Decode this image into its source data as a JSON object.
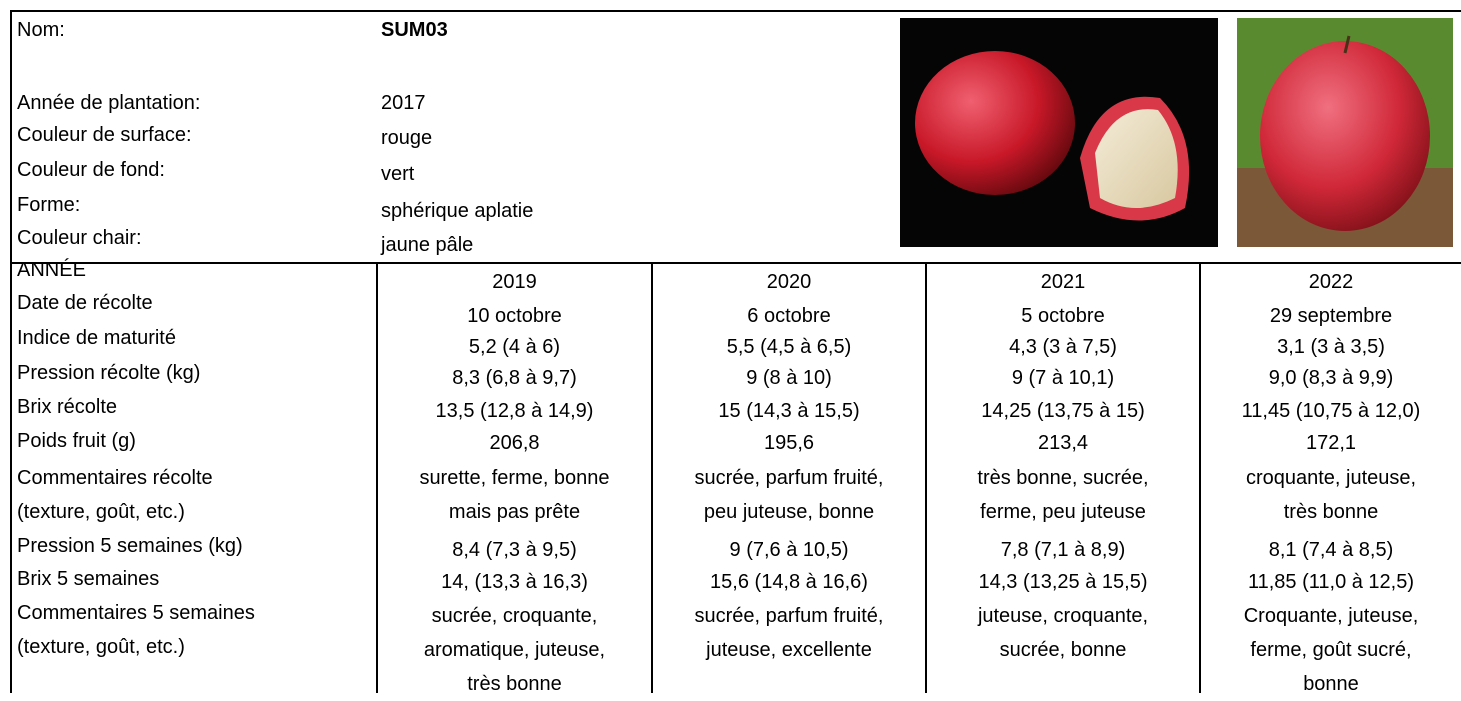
{
  "header": {
    "fields": [
      {
        "label": "Nom:",
        "value": "SUM03"
      },
      {
        "label": "Année de plantation:",
        "value": "2017"
      },
      {
        "label": "Couleur de surface:",
        "value": "rouge"
      },
      {
        "label": "Couleur de fond:",
        "value": "vert"
      },
      {
        "label": "Forme:",
        "value": "sphérique aplatie"
      },
      {
        "label": "Couleur chair:",
        "value": "jaune pâle"
      }
    ]
  },
  "table": {
    "header": {
      "label": "ANNÉE",
      "years": [
        "2019",
        "2020",
        "2021",
        "2022"
      ]
    },
    "rows": [
      {
        "label": "Date de récolte",
        "values": [
          "10 octobre",
          "6 octobre",
          "5 octobre",
          "29 septembre"
        ]
      },
      {
        "label": "Indice de maturité",
        "values": [
          "5,2 (4 à 6)",
          "5,5 (4,5 à 6,5)",
          "4,3 (3 à 7,5)",
          "3,1 (3 à 3,5)"
        ]
      },
      {
        "label": "Pression récolte (kg)",
        "values": [
          "8,3 (6,8 à 9,7)",
          "9 (8 à 10)",
          "9 (7 à 10,1)",
          "9,0 (8,3 à 9,9)"
        ]
      },
      {
        "label": "Brix récolte",
        "values": [
          "13,5 (12,8 à 14,9)",
          "15 (14,3 à 15,5)",
          "14,25 (13,75 à 15)",
          "11,45 (10,75 à 12,0)"
        ]
      },
      {
        "label": "Poids fruit (g)",
        "values": [
          "206,8",
          "195,6",
          "213,4",
          "172,1"
        ]
      },
      {
        "label": "Commentaires récolte\n(texture, goût, etc.)",
        "values": [
          "surette, ferme, bonne\nmais pas prête",
          "sucrée, parfum fruité,\npeu juteuse, bonne",
          "très bonne, sucrée,\nferme, peu juteuse",
          "croquante, juteuse,\ntrès bonne"
        ]
      },
      {
        "label": "Pression 5 semaines (kg)",
        "values": [
          "8,4 (7,3 à 9,5)",
          "9 (7,6 à 10,5)",
          "7,8 (7,1 à 8,9)",
          "8,1 (7,4 à 8,5)"
        ]
      },
      {
        "label": "Brix 5 semaines",
        "values": [
          "14, (13,3 à 16,3)",
          "15,6 (14,8 à 16,6)",
          "14,3 (13,25 à 15,5)",
          "11,85 (11,0 à 12,5)"
        ]
      },
      {
        "label": "Commentaires 5 semaines\n(texture, goût, etc.)",
        "values": [
          "sucrée, croquante,\naromatique, juteuse,\ntrès bonne",
          "sucrée, parfum fruité,\njuteuse, excellente",
          "juteuse, croquante,\nsucrée, bonne",
          "Croquante, juteuse,\nferme, goût sucré,\nbonne"
        ]
      }
    ]
  }
}
